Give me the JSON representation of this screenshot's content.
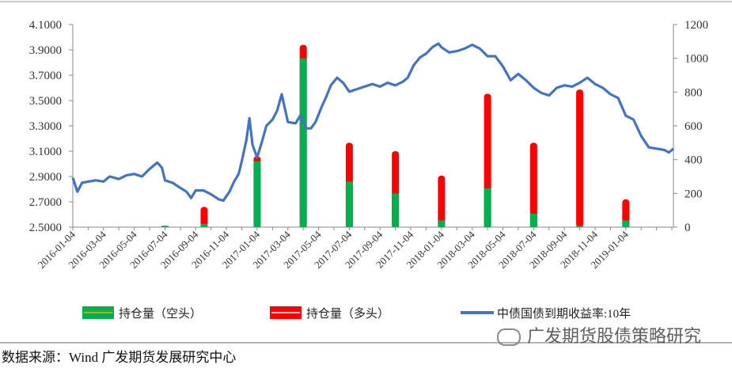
{
  "chart_data": {
    "type": "bar-line",
    "left_axis": {
      "ticks": [
        "4.1000",
        "3.9000",
        "3.7000",
        "3.5000",
        "3.3000",
        "3.1000",
        "2.9000",
        "2.7000",
        "2.5000"
      ],
      "ylim": [
        2.5,
        4.1
      ]
    },
    "right_axis": {
      "ticks": [
        "1200",
        "1000",
        "800",
        "600",
        "400",
        "200",
        "0"
      ],
      "ylim": [
        0,
        1200
      ]
    },
    "x_tick_labels": [
      "2016-01-04",
      "2016-03-04",
      "2016-05-04",
      "2016-07-04",
      "2016-09-04",
      "2016-11-04",
      "2017-01-04",
      "2017-03-04",
      "2017-05-04",
      "2017-07-04",
      "2017-09-04",
      "2017-11-04",
      "2018-01-04",
      "2018-03-04",
      "2018-05-04",
      "2018-07-04",
      "2018-09-04",
      "2018-11-04",
      "2019-01-04"
    ],
    "bar_series": [
      {
        "name": "持仓量（空头）",
        "color": "#00b050"
      },
      {
        "name": "持仓量（多头）",
        "color": "#ff0000"
      }
    ],
    "bars": [
      {
        "month_index": 6.0,
        "short": 8,
        "long": 8
      },
      {
        "month_index": 8.55,
        "short": 20,
        "long": 120
      },
      {
        "month_index": 12.0,
        "short": 390,
        "long": 420
      },
      {
        "month_index": 15.0,
        "short": 1000,
        "long": 1080
      },
      {
        "month_index": 18.0,
        "short": 270,
        "long": 500
      },
      {
        "month_index": 21.0,
        "short": 200,
        "long": 450
      },
      {
        "month_index": 24.0,
        "short": 40,
        "long": 305
      },
      {
        "month_index": 27.0,
        "short": 230,
        "long": 790
      },
      {
        "month_index": 30.0,
        "short": 80,
        "long": 500
      },
      {
        "month_index": 33.0,
        "short": 8,
        "long": 815
      },
      {
        "month_index": 36.0,
        "short": 40,
        "long": 165
      }
    ],
    "line_series": {
      "name": "中债国债到期收益率:10年",
      "color": "#4472c4",
      "points": [
        [
          0.0,
          2.89
        ],
        [
          0.3,
          2.78
        ],
        [
          0.6,
          2.85
        ],
        [
          1.0,
          2.86
        ],
        [
          1.5,
          2.87
        ],
        [
          2.0,
          2.86
        ],
        [
          2.4,
          2.9
        ],
        [
          3.0,
          2.88
        ],
        [
          3.5,
          2.91
        ],
        [
          4.0,
          2.92
        ],
        [
          4.5,
          2.9
        ],
        [
          5.0,
          2.96
        ],
        [
          5.5,
          3.01
        ],
        [
          5.8,
          2.97
        ],
        [
          6.0,
          2.87
        ],
        [
          6.5,
          2.85
        ],
        [
          7.0,
          2.81
        ],
        [
          7.4,
          2.78
        ],
        [
          7.7,
          2.73
        ],
        [
          8.0,
          2.79
        ],
        [
          8.5,
          2.79
        ],
        [
          9.0,
          2.76
        ],
        [
          9.5,
          2.72
        ],
        [
          9.8,
          2.71
        ],
        [
          10.2,
          2.78
        ],
        [
          10.5,
          2.86
        ],
        [
          10.8,
          2.92
        ],
        [
          11.0,
          3.02
        ],
        [
          11.3,
          3.19
        ],
        [
          11.5,
          3.36
        ],
        [
          11.7,
          3.15
        ],
        [
          12.0,
          3.05
        ],
        [
          12.3,
          3.17
        ],
        [
          12.6,
          3.3
        ],
        [
          13.0,
          3.35
        ],
        [
          13.3,
          3.42
        ],
        [
          13.6,
          3.55
        ],
        [
          14.0,
          3.33
        ],
        [
          14.5,
          3.32
        ],
        [
          14.8,
          3.38
        ],
        [
          15.2,
          3.28
        ],
        [
          15.5,
          3.28
        ],
        [
          15.8,
          3.33
        ],
        [
          16.2,
          3.45
        ],
        [
          16.5,
          3.53
        ],
        [
          16.8,
          3.62
        ],
        [
          17.2,
          3.68
        ],
        [
          17.6,
          3.64
        ],
        [
          18.0,
          3.57
        ],
        [
          18.5,
          3.59
        ],
        [
          19.0,
          3.61
        ],
        [
          19.5,
          3.63
        ],
        [
          20.0,
          3.61
        ],
        [
          20.5,
          3.64
        ],
        [
          21.0,
          3.62
        ],
        [
          21.5,
          3.65
        ],
        [
          21.8,
          3.68
        ],
        [
          22.2,
          3.78
        ],
        [
          22.6,
          3.84
        ],
        [
          23.0,
          3.87
        ],
        [
          23.4,
          3.92
        ],
        [
          23.8,
          3.95
        ],
        [
          24.0,
          3.92
        ],
        [
          24.5,
          3.88
        ],
        [
          25.0,
          3.89
        ],
        [
          25.5,
          3.91
        ],
        [
          26.0,
          3.94
        ],
        [
          26.5,
          3.91
        ],
        [
          27.0,
          3.85
        ],
        [
          27.5,
          3.85
        ],
        [
          28.0,
          3.77
        ],
        [
          28.5,
          3.66
        ],
        [
          29.0,
          3.71
        ],
        [
          29.5,
          3.66
        ],
        [
          30.0,
          3.6
        ],
        [
          30.5,
          3.56
        ],
        [
          31.0,
          3.54
        ],
        [
          31.5,
          3.6
        ],
        [
          32.0,
          3.62
        ],
        [
          32.5,
          3.61
        ],
        [
          33.0,
          3.64
        ],
        [
          33.5,
          3.68
        ],
        [
          34.0,
          3.63
        ],
        [
          34.5,
          3.6
        ],
        [
          35.0,
          3.55
        ],
        [
          35.5,
          3.52
        ],
        [
          36.0,
          3.38
        ],
        [
          36.5,
          3.35
        ],
        [
          37.0,
          3.22
        ],
        [
          37.5,
          3.13
        ],
        [
          38.0,
          3.12
        ],
        [
          38.5,
          3.11
        ],
        [
          38.8,
          3.09
        ],
        [
          39.1,
          3.12
        ]
      ]
    },
    "legend_placement": "bottom",
    "grid": false
  },
  "legend": [
    {
      "label": "持仓量（空头）",
      "kind": "bar",
      "color": "#00b050",
      "line_color": "#ffa500"
    },
    {
      "label": "持仓量（多头）",
      "kind": "bar",
      "color": "#ff0000",
      "line_color": "#ffffff"
    },
    {
      "label": "中债国债到期收益率:10年",
      "kind": "line",
      "color": "#4472c4"
    }
  ],
  "source": "数据来源：Wind 广发期货发展研究中心",
  "watermark": "广发期货股债策略研究",
  "watermark_icon": "wechat-icon"
}
